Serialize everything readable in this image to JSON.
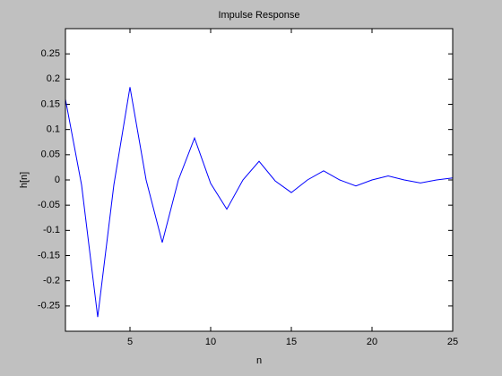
{
  "chart_data": {
    "type": "line",
    "title": "Impulse Response",
    "xlabel": "n",
    "ylabel": "h[n]",
    "x": [
      1,
      2,
      3,
      4,
      5,
      6,
      7,
      8,
      9,
      10,
      11,
      12,
      13,
      14,
      15,
      16,
      17,
      18,
      19,
      20,
      21,
      22,
      23,
      24,
      25
    ],
    "series": [
      {
        "name": "h[n]",
        "color": "#0000ff",
        "values": [
          0.16,
          -0.01,
          -0.272,
          -0.01,
          0.184,
          0.0,
          -0.124,
          0.0,
          0.083,
          -0.007,
          -0.058,
          0.0,
          0.037,
          -0.002,
          -0.025,
          0.0,
          0.018,
          0.0,
          -0.012,
          0.0,
          0.008,
          0.0,
          -0.006,
          0.0,
          0.004
        ]
      }
    ],
    "xlim": [
      1,
      25
    ],
    "xticks": [
      5,
      10,
      15,
      20,
      25
    ],
    "ylim": [
      -0.3,
      0.3
    ],
    "yticks": [
      -0.25,
      -0.2,
      -0.15,
      -0.1,
      -0.05,
      0,
      0.05,
      0.1,
      0.15,
      0.2,
      0.25
    ],
    "grid": false,
    "legend": false
  }
}
